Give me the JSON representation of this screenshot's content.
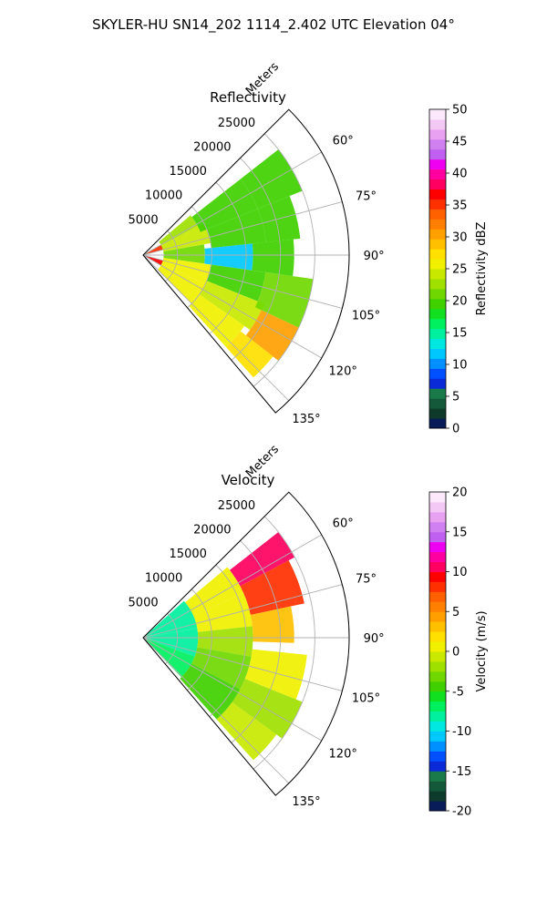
{
  "title": "SKYLER-HU  SN14_202  1114_2.402 UTC Elevation 04°",
  "chart_data": [
    {
      "type": "heatmap",
      "subtype": "polar-sector",
      "title": "Reflectivity",
      "radial_label": "Meters",
      "radial_ticks": [
        "5000",
        "10000",
        "15000",
        "20000",
        "25000"
      ],
      "radial_tick_values": [
        5000,
        10000,
        15000,
        20000,
        25000
      ],
      "angle_ticks": [
        "60°",
        "75°",
        "90°",
        "105°",
        "120°",
        "135°"
      ],
      "angle_tick_values": [
        60,
        75,
        90,
        105,
        120,
        135
      ],
      "theta_range_deg": [
        45,
        140
      ],
      "r_max_m": 30000,
      "grid": true,
      "colorbar": {
        "label": "Reflectivity dBZ",
        "range": [
          0,
          50
        ],
        "ticks": [
          "0",
          "5",
          "10",
          "15",
          "20",
          "25",
          "30",
          "35",
          "40",
          "45",
          "50"
        ],
        "colors": [
          "#081c5a",
          "#0d3a2a",
          "#145a3a",
          "#1a7a4a",
          "#0a2ad8",
          "#0050ff",
          "#0090ff",
          "#00c8ff",
          "#00e8e0",
          "#00f0a0",
          "#00f060",
          "#10e020",
          "#40d000",
          "#70d800",
          "#a0e000",
          "#c8e800",
          "#f0f000",
          "#ffe000",
          "#ffc000",
          "#ffa000",
          "#ff8000",
          "#ff6000",
          "#ff3000",
          "#ff0000",
          "#ff0060",
          "#ff00a0",
          "#f000f0",
          "#c060f0",
          "#d080f0",
          "#e8a0f0",
          "#f4c8f4",
          "#fbe8fb"
        ]
      },
      "cells": [
        {
          "r": [
            0,
            3000
          ],
          "theta": [
            60,
            75
          ],
          "value": 35
        },
        {
          "r": [
            0,
            3000
          ],
          "theta": [
            105,
            120
          ],
          "value": 36
        },
        {
          "r": [
            3000,
            9000
          ],
          "theta": [
            50,
            62
          ],
          "value": 22
        },
        {
          "r": [
            3000,
            10000
          ],
          "theta": [
            62,
            80
          ],
          "value": 24
        },
        {
          "r": [
            3000,
            9000
          ],
          "theta": [
            80,
            98
          ],
          "value": 21
        },
        {
          "r": [
            3000,
            10000
          ],
          "theta": [
            98,
            115
          ],
          "value": 26
        },
        {
          "r": [
            3000,
            10000
          ],
          "theta": [
            115,
            135
          ],
          "value": 25
        },
        {
          "r": [
            9000,
            18000
          ],
          "theta": [
            52,
            68
          ],
          "value": 20
        },
        {
          "r": [
            10000,
            18000
          ],
          "theta": [
            68,
            84
          ],
          "value": 19
        },
        {
          "r": [
            9000,
            16000
          ],
          "theta": [
            84,
            98
          ],
          "value": 12
        },
        {
          "r": [
            10000,
            18000
          ],
          "theta": [
            98,
            112
          ],
          "value": 20
        },
        {
          "r": [
            10000,
            19000
          ],
          "theta": [
            112,
            125
          ],
          "value": 24
        },
        {
          "r": [
            10000,
            18000
          ],
          "theta": [
            125,
            138
          ],
          "value": 26
        },
        {
          "r": [
            16000,
            22000
          ],
          "theta": [
            84,
            98
          ],
          "value": 19
        },
        {
          "r": [
            18000,
            25000
          ],
          "theta": [
            52,
            68
          ],
          "value": 20
        },
        {
          "r": [
            18000,
            23000
          ],
          "theta": [
            68,
            84
          ],
          "value": 20
        },
        {
          "r": [
            18000,
            25000
          ],
          "theta": [
            98,
            115
          ],
          "value": 21
        },
        {
          "r": [
            19000,
            25000
          ],
          "theta": [
            115,
            128
          ],
          "value": 30
        },
        {
          "r": [
            18000,
            24000
          ],
          "theta": [
            128,
            138
          ],
          "value": 27
        }
      ]
    },
    {
      "type": "heatmap",
      "subtype": "polar-sector",
      "title": "Velocity",
      "radial_label": "Meters",
      "radial_ticks": [
        "5000",
        "10000",
        "15000",
        "20000",
        "25000"
      ],
      "radial_tick_values": [
        5000,
        10000,
        15000,
        20000,
        25000
      ],
      "angle_ticks": [
        "60°",
        "75°",
        "90°",
        "105°",
        "120°",
        "135°"
      ],
      "angle_tick_values": [
        60,
        75,
        90,
        105,
        120,
        135
      ],
      "theta_range_deg": [
        45,
        140
      ],
      "r_max_m": 30000,
      "grid": true,
      "colorbar": {
        "label": "Velocity (m/s)",
        "range": [
          -20,
          20
        ],
        "ticks": [
          "-20",
          "-15",
          "-10",
          "-5",
          "0",
          "5",
          "10",
          "15",
          "20"
        ],
        "colors": [
          "#081c5a",
          "#0d3a2a",
          "#145a3a",
          "#1a7a4a",
          "#0a2ad8",
          "#0050ff",
          "#0090ff",
          "#00c8ff",
          "#00e8e0",
          "#00f0a0",
          "#00f060",
          "#10e020",
          "#40d000",
          "#70d800",
          "#a0e000",
          "#c8e800",
          "#f0f000",
          "#ffe000",
          "#ffc000",
          "#ffa000",
          "#ff8000",
          "#ff6000",
          "#ff3000",
          "#ff0000",
          "#ff0060",
          "#ff00a0",
          "#f000f0",
          "#c060f0",
          "#d080f0",
          "#e8a0f0",
          "#f4c8f4",
          "#fbe8fb"
        ]
      },
      "cells": [
        {
          "r": [
            0,
            8000
          ],
          "theta": [
            48,
            80
          ],
          "value": -8
        },
        {
          "r": [
            0,
            8000
          ],
          "theta": [
            80,
            110
          ],
          "value": -8
        },
        {
          "r": [
            0,
            8000
          ],
          "theta": [
            110,
            136
          ],
          "value": -7
        },
        {
          "r": [
            8000,
            16000
          ],
          "theta": [
            50,
            66
          ],
          "value": 0
        },
        {
          "r": [
            8000,
            16000
          ],
          "theta": [
            66,
            84
          ],
          "value": 1
        },
        {
          "r": [
            8000,
            16000
          ],
          "theta": [
            84,
            100
          ],
          "value": -2
        },
        {
          "r": [
            8000,
            16000
          ],
          "theta": [
            100,
            118
          ],
          "value": -3
        },
        {
          "r": [
            8000,
            16000
          ],
          "theta": [
            118,
            138
          ],
          "value": -4
        },
        {
          "r": [
            16000,
            25000
          ],
          "theta": [
            52,
            62
          ],
          "value": 11
        },
        {
          "r": [
            16000,
            24000
          ],
          "theta": [
            62,
            78
          ],
          "value": 8
        },
        {
          "r": [
            16000,
            22000
          ],
          "theta": [
            78,
            92
          ],
          "value": 3
        },
        {
          "r": [
            16000,
            24000
          ],
          "theta": [
            96,
            112
          ],
          "value": 0
        },
        {
          "r": [
            16000,
            25000
          ],
          "theta": [
            112,
            126
          ],
          "value": -2
        },
        {
          "r": [
            16000,
            24000
          ],
          "theta": [
            126,
            138
          ],
          "value": -1
        }
      ]
    }
  ]
}
